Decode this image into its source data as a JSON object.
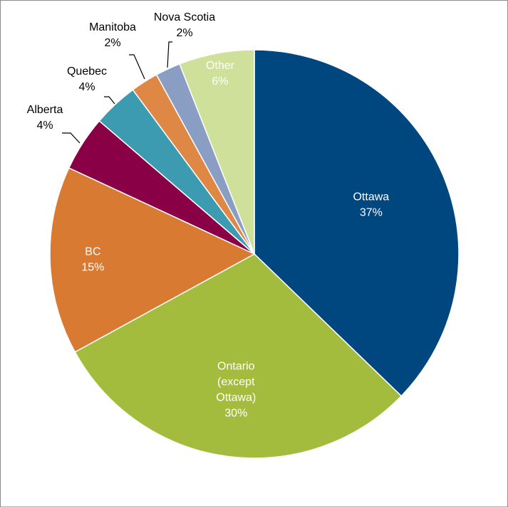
{
  "chart_data": {
    "type": "pie",
    "title": "",
    "start_angle_deg": 0,
    "direction": "clockwise",
    "slices": [
      {
        "label": [
          "Ottawa"
        ],
        "percent_label": "37%",
        "value": 37.5,
        "color": "#00467f",
        "label_style": "inside"
      },
      {
        "label": [
          "Ontario",
          "(except",
          "Ottawa)"
        ],
        "percent_label": "30%",
        "value": 30.0,
        "color": "#a4bc3e",
        "label_style": "inside"
      },
      {
        "label": [
          "BC"
        ],
        "percent_label": "15%",
        "value": 15.0,
        "color": "#d97a33",
        "label_style": "inside"
      },
      {
        "label": [
          "Alberta"
        ],
        "percent_label": "4%",
        "value": 4.4,
        "color": "#8a0047",
        "label_style": "outside"
      },
      {
        "label": [
          "Quebec"
        ],
        "percent_label": "4%",
        "value": 3.6,
        "color": "#3c9bb1",
        "label_style": "outside"
      },
      {
        "label": [
          "Manitoba"
        ],
        "percent_label": "2%",
        "value": 2.2,
        "color": "#df8745",
        "label_style": "outside"
      },
      {
        "label": [
          "Nova Scotia"
        ],
        "percent_label": "2%",
        "value": 2.0,
        "color": "#8a9ec3",
        "label_style": "outside"
      },
      {
        "label": [
          "Other"
        ],
        "percent_label": "6%",
        "value": 6.0,
        "color": "#cfe09a",
        "label_style": "inside"
      }
    ]
  }
}
